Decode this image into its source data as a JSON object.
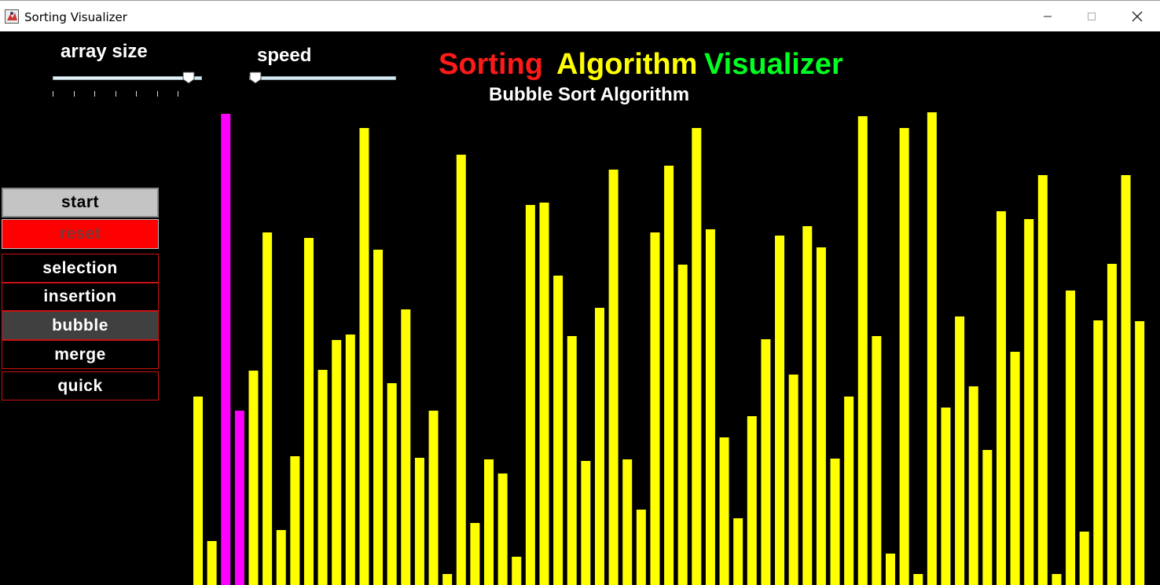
{
  "window": {
    "title": "Sorting Visualizer"
  },
  "controls": {
    "array_size_label": "array size",
    "speed_label": "speed",
    "array_size_value": 0.95,
    "speed_value": 0.0
  },
  "heading": {
    "part1": "Sorting",
    "part2": "Algorithm",
    "part3": "Visualizer",
    "subtitle": "Bubble Sort Algorithm",
    "colors": {
      "part1": "#ff1a1a",
      "part2": "#ffff00",
      "part3": "#00ff22"
    }
  },
  "buttons": {
    "start": "start",
    "reset": "reset",
    "selection": "selection",
    "insertion": "insertion",
    "bubble": "bubble",
    "merge": "merge",
    "quick": "quick"
  },
  "colors": {
    "bar": "#ffff00",
    "highlight": "#ff00ff",
    "reset": "#ff0000",
    "button_border": "#cc1111"
  },
  "chart_data": {
    "type": "bar",
    "values": [
      240,
      56,
      600,
      222,
      273,
      449,
      70,
      164,
      442,
      274,
      312,
      319,
      582,
      427,
      257,
      351,
      162,
      222,
      14,
      548,
      79,
      160,
      142,
      36,
      484,
      487,
      394,
      317,
      158,
      353,
      529,
      160,
      96,
      449,
      534,
      408,
      582,
      453,
      188,
      85,
      215,
      313,
      445,
      268,
      457,
      430,
      161,
      240,
      597,
      317,
      40,
      582,
      14,
      602,
      226,
      342,
      253,
      172,
      476,
      297,
      466,
      522,
      14,
      375,
      68,
      337,
      409,
      522,
      336
    ],
    "highlight_indices": [
      2,
      3
    ],
    "max": 610
  }
}
